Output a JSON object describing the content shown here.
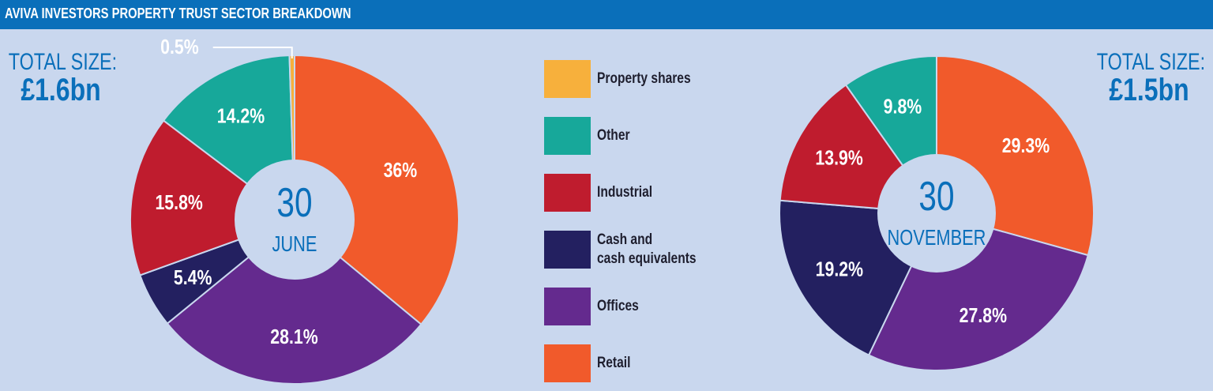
{
  "header": {
    "title": "AVIVA INVESTORS PROPERTY TRUST SECTOR BREAKDOWN"
  },
  "totals": [
    {
      "label": "TOTAL SIZE:",
      "value": "£1.6bn"
    },
    {
      "label": "TOTAL SIZE:",
      "value": "£1.5bn"
    }
  ],
  "legend": [
    {
      "label": "Property shares",
      "color": "#f7b03c"
    },
    {
      "label": "Other",
      "color": "#17a89a"
    },
    {
      "label": "Industrial",
      "color": "#bf1c2e"
    },
    {
      "label": "Cash and\ncash equivalents",
      "color": "#232060"
    },
    {
      "label": "Offices",
      "color": "#642a8e"
    },
    {
      "label": "Retail",
      "color": "#f15a2b"
    }
  ],
  "chart_data": [
    {
      "type": "pie",
      "center_label_top": "30",
      "center_label_bottom": "JUNE",
      "slices": [
        {
          "category": "Retail",
          "value": 36,
          "label": "36%",
          "color": "#f15a2b"
        },
        {
          "category": "Offices",
          "value": 28.1,
          "label": "28.1%",
          "color": "#642a8e"
        },
        {
          "category": "Cash and cash equivalents",
          "value": 5.4,
          "label": "5.4%",
          "color": "#232060"
        },
        {
          "category": "Industrial",
          "value": 15.8,
          "label": "15.8%",
          "color": "#bf1c2e"
        },
        {
          "category": "Other",
          "value": 14.2,
          "label": "14.2%",
          "color": "#17a89a"
        },
        {
          "category": "Property shares",
          "value": 0.5,
          "label": "0.5%",
          "color": "#f7b03c"
        }
      ]
    },
    {
      "type": "pie",
      "center_label_top": "30",
      "center_label_bottom": "NOVEMBER",
      "slices": [
        {
          "category": "Retail",
          "value": 29.3,
          "label": "29.3%",
          "color": "#f15a2b"
        },
        {
          "category": "Offices",
          "value": 27.8,
          "label": "27.8%",
          "color": "#642a8e"
        },
        {
          "category": "Cash and cash equivalents",
          "value": 19.2,
          "label": "19.2%",
          "color": "#232060"
        },
        {
          "category": "Industrial",
          "value": 13.9,
          "label": "13.9%",
          "color": "#bf1c2e"
        },
        {
          "category": "Other",
          "value": 9.8,
          "label": "9.8%",
          "color": "#17a89a"
        }
      ]
    }
  ]
}
